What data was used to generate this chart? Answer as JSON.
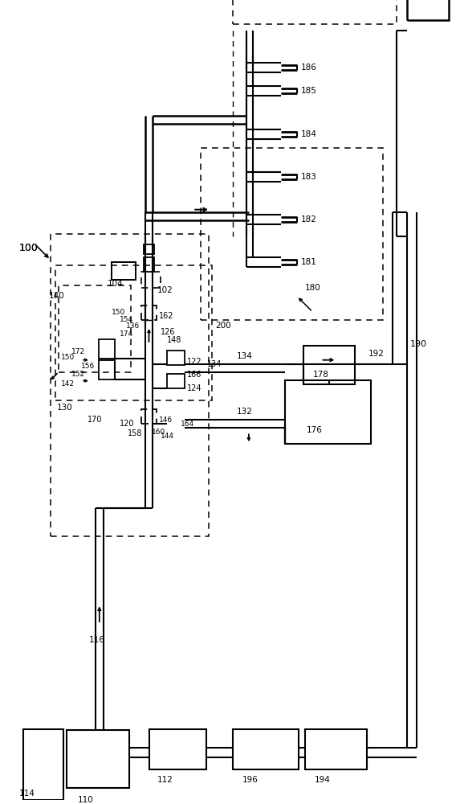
{
  "bg": "#ffffff",
  "lc": "#000000",
  "figsize": [
    5.73,
    10.0
  ],
  "dpi": 100,
  "nozzle_labels": [
    "181",
    "182",
    "183",
    "184",
    "185",
    "186"
  ],
  "bottom_labels": [
    "114",
    "110",
    "112",
    "196",
    "194"
  ],
  "ref_100": [
    28,
    265
  ],
  "ref_190_label": [
    520,
    590
  ]
}
